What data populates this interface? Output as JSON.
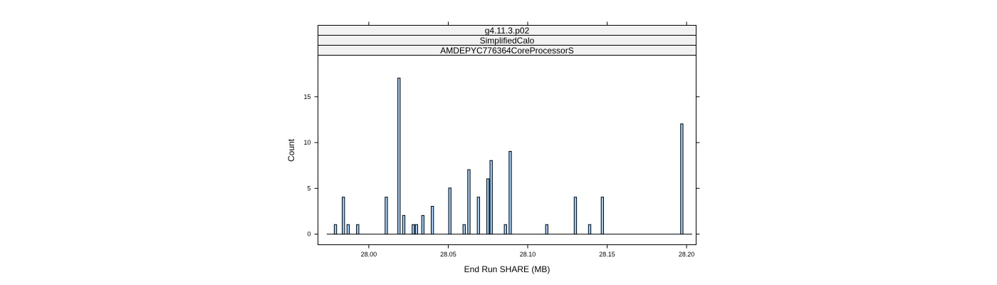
{
  "chart_data": {
    "type": "bar",
    "strips": [
      "g4.11.3.p02",
      "SimplifiedCalo",
      "AMDEPYC776364CoreProcessorS"
    ],
    "xlabel": "End Run SHARE (MB)",
    "ylabel": "Count",
    "xlim": [
      27.968,
      28.206
    ],
    "ylim": [
      -1.2,
      19.5
    ],
    "x_ticks": [
      28.0,
      28.05,
      28.1,
      28.15,
      28.2
    ],
    "x_tick_labels": [
      "28.00",
      "28.05",
      "28.10",
      "28.15",
      "28.20"
    ],
    "y_ticks": [
      0,
      5,
      10,
      15
    ],
    "y_tick_labels": [
      "0",
      "5",
      "10",
      "15"
    ],
    "baseline_range": [
      27.9735,
      28.2035
    ],
    "bin_width": 0.0015,
    "bar_color": "#99ccff",
    "bars": [
      {
        "x": 27.979,
        "count": 1
      },
      {
        "x": 27.984,
        "count": 4
      },
      {
        "x": 27.987,
        "count": 1
      },
      {
        "x": 27.993,
        "count": 1
      },
      {
        "x": 28.011,
        "count": 4
      },
      {
        "x": 28.019,
        "count": 17
      },
      {
        "x": 28.022,
        "count": 2
      },
      {
        "x": 28.028,
        "count": 1
      },
      {
        "x": 28.03,
        "count": 1
      },
      {
        "x": 28.034,
        "count": 2
      },
      {
        "x": 28.04,
        "count": 3
      },
      {
        "x": 28.051,
        "count": 5
      },
      {
        "x": 28.06,
        "count": 1
      },
      {
        "x": 28.063,
        "count": 7
      },
      {
        "x": 28.069,
        "count": 4
      },
      {
        "x": 28.075,
        "count": 6
      },
      {
        "x": 28.077,
        "count": 8
      },
      {
        "x": 28.086,
        "count": 1
      },
      {
        "x": 28.089,
        "count": 9
      },
      {
        "x": 28.112,
        "count": 1
      },
      {
        "x": 28.13,
        "count": 4
      },
      {
        "x": 28.139,
        "count": 1
      },
      {
        "x": 28.147,
        "count": 4
      },
      {
        "x": 28.197,
        "count": 12
      }
    ]
  }
}
